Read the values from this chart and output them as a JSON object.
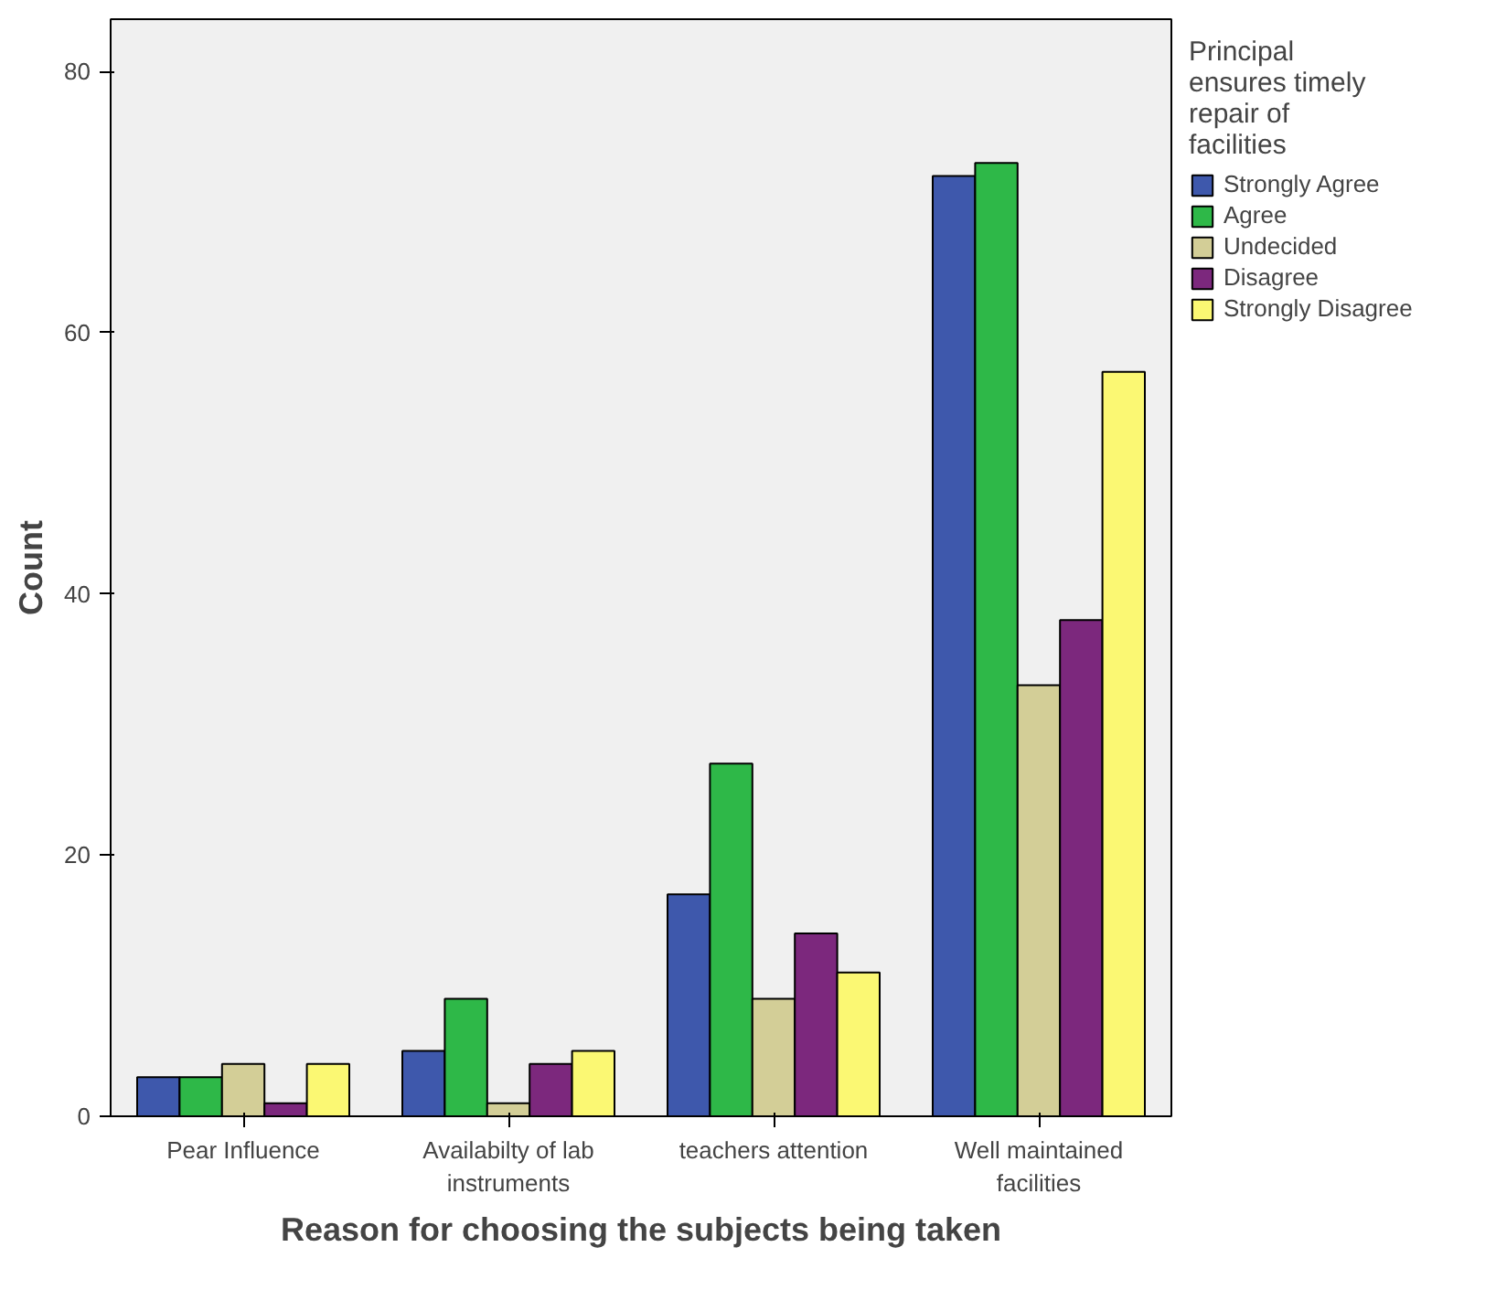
{
  "chart_data": {
    "type": "bar",
    "xlabel": "Reason for choosing the subjects being taken",
    "ylabel": "Count",
    "legend_title": "Principal ensures timely repair of facilities",
    "categories": [
      "Pear Influence",
      "Availabilty of lab instruments",
      "teachers attention",
      "Well maintained facilities"
    ],
    "series": [
      {
        "name": "Strongly Agree",
        "color": "#3e58ac",
        "values": [
          3,
          5,
          17,
          72
        ]
      },
      {
        "name": "Agree",
        "color": "#2eb848",
        "values": [
          3,
          9,
          27,
          73
        ]
      },
      {
        "name": "Undecided",
        "color": "#d3ce97",
        "values": [
          4,
          1,
          9,
          33
        ]
      },
      {
        "name": "Disagree",
        "color": "#7c287d",
        "values": [
          1,
          4,
          14,
          38
        ]
      },
      {
        "name": "Strongly Disagree",
        "color": "#fbf873",
        "values": [
          4,
          5,
          11,
          57
        ]
      }
    ],
    "ylim": [
      0,
      84
    ],
    "yticks": [
      0,
      20,
      40,
      60,
      80
    ],
    "grid": false,
    "legend": "right"
  }
}
